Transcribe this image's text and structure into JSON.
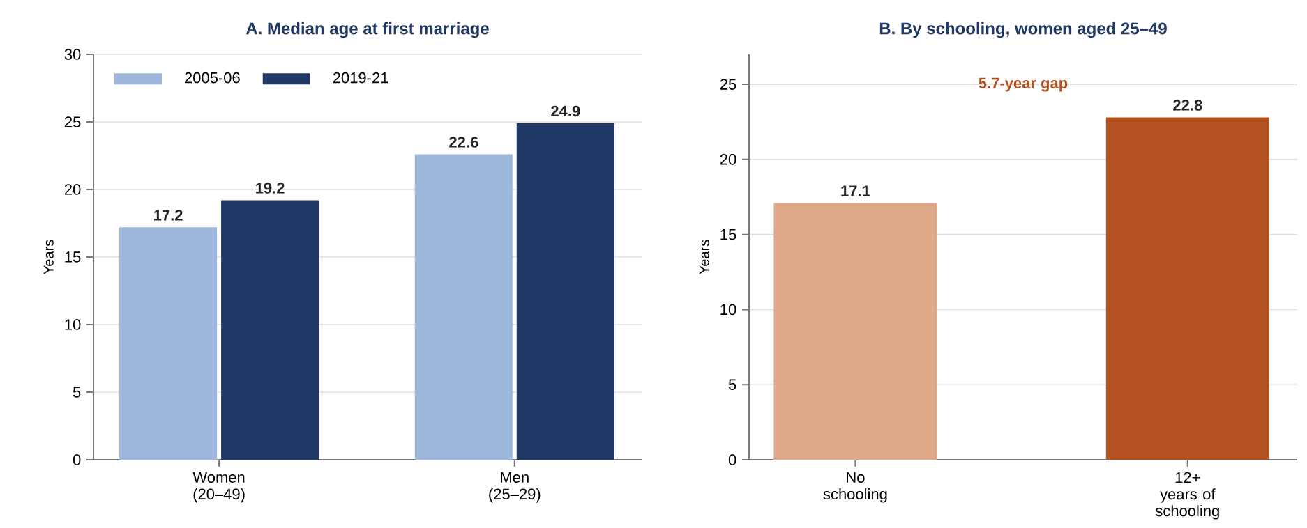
{
  "chart_data": [
    {
      "type": "bar",
      "title": "A. Median age at first marriage",
      "ylabel": "Years",
      "categories": [
        "Women (20–49)",
        "Men (25–29)"
      ],
      "series": [
        {
          "name": "2005-06",
          "color": "#9db8dc",
          "values": [
            17.2,
            22.6
          ]
        },
        {
          "name": "2019-21",
          "color": "#203864",
          "values": [
            19.2,
            24.9
          ]
        }
      ],
      "ylim": [
        0,
        30
      ],
      "yticks": [
        0,
        5,
        10,
        15,
        20,
        25,
        30
      ],
      "grid": "y",
      "legend": "top left",
      "data_labels": true
    },
    {
      "type": "bar",
      "title": "B. By schooling, women aged 25–49",
      "ylabel": "Years",
      "categories": [
        "No schooling",
        "12+ years of schooling"
      ],
      "values": [
        17.1,
        22.8
      ],
      "colors": [
        "#e0a98a",
        "#b3501f"
      ],
      "ylim": [
        0,
        27
      ],
      "yticks": [
        0,
        5,
        10,
        15,
        20,
        25
      ],
      "grid": "y",
      "data_labels": true,
      "annotations": [
        "5.7-year gap"
      ]
    }
  ]
}
